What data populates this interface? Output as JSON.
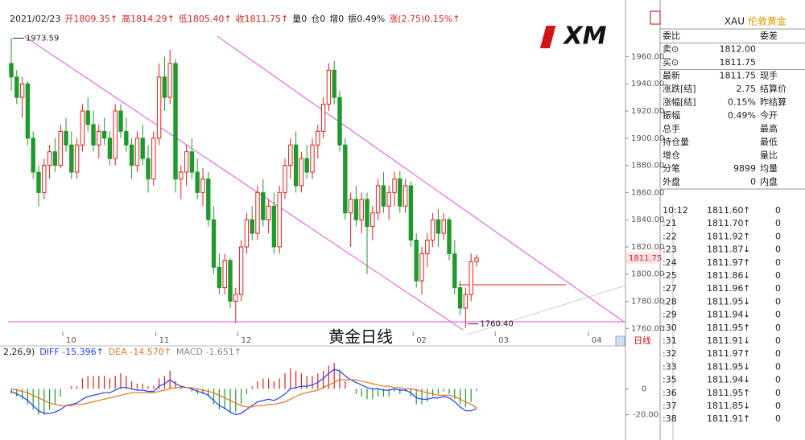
{
  "info_bar": {
    "items": [
      {
        "text": "2021/02/23",
        "color": "#222"
      },
      {
        "text": "开1809.35↑",
        "color": "#e0201c"
      },
      {
        "text": "高1814.29↑",
        "color": "#e0201c"
      },
      {
        "text": "低1805.40↑",
        "color": "#e0201c"
      },
      {
        "text": "收1811.75↑",
        "color": "#e0201c"
      },
      {
        "text": "量0",
        "color": "#222"
      },
      {
        "text": "仓0",
        "color": "#222"
      },
      {
        "text": "增0",
        "color": "#222"
      },
      {
        "text": "振0.49%",
        "color": "#222"
      },
      {
        "text": "涨(2.75)0.15%↑",
        "color": "#e0201c"
      }
    ]
  },
  "logo": "XM",
  "chart_data": [
    {
      "type": "candlestick",
      "title": "黄金日线",
      "period_label": "日线",
      "categories": [
        null,
        null,
        null,
        null,
        null,
        null,
        null,
        null,
        null,
        null,
        "10",
        null,
        null,
        null,
        null,
        null,
        null,
        null,
        null,
        null,
        null,
        null,
        null,
        null,
        null,
        null,
        null,
        "11",
        null,
        null,
        null,
        null,
        null,
        null,
        null,
        null,
        null,
        null,
        null,
        null,
        null,
        null,
        "12",
        null,
        null,
        null,
        null,
        null,
        null,
        null,
        null,
        null,
        null,
        null,
        null,
        null,
        null,
        null,
        null,
        null,
        null,
        null,
        null,
        null,
        null,
        null,
        null,
        null,
        null,
        null,
        null,
        null,
        null,
        null,
        "02",
        null,
        null,
        null,
        null,
        null,
        null,
        null,
        null,
        null,
        null,
        null,
        null,
        null,
        null,
        "03",
        null,
        null,
        null,
        null,
        null,
        null,
        null,
        null,
        null,
        null,
        null,
        null,
        null,
        null,
        null,
        null,
        "04",
        null,
        null,
        null,
        null,
        null
      ],
      "open": [
        1955,
        1945,
        1930,
        1940,
        1900,
        1875,
        1860,
        1880,
        1890,
        1880,
        1905,
        1895,
        1875,
        1895,
        1920,
        1910,
        1895,
        1905,
        1900,
        1885,
        1920,
        1905,
        1895,
        1880,
        1900,
        1885,
        1870,
        1900,
        1945,
        1930,
        1955,
        1870,
        1875,
        1890,
        1875,
        1860,
        1870,
        1840,
        1805,
        1790,
        1810,
        1780,
        1785,
        1820,
        1840,
        1830,
        1860,
        1840,
        1850,
        1820,
        1860,
        1880,
        1895,
        1865,
        1885,
        1875,
        1895,
        1905,
        1925,
        1950,
        1930,
        1895,
        1845,
        1855,
        1840,
        1855,
        1835,
        1845,
        1865,
        1850,
        1860,
        1870,
        1850,
        1865,
        1825,
        1795,
        1815,
        1825,
        1840,
        1830,
        1840,
        1815,
        1790,
        1775,
        1785,
        1809.35,
        null,
        null,
        null,
        null,
        null,
        null,
        null,
        null,
        null,
        null,
        null,
        null,
        null,
        null,
        null,
        null,
        null,
        null,
        null,
        null,
        null,
        null,
        null,
        null,
        null,
        null
      ],
      "high": [
        1973.59,
        1950,
        1945,
        1942,
        1905,
        1880,
        1885,
        1895,
        1900,
        1910,
        1915,
        1905,
        1900,
        1925,
        1930,
        1920,
        1910,
        1915,
        1905,
        1925,
        1925,
        1915,
        1900,
        1905,
        1910,
        1895,
        1905,
        1955,
        1960,
        1965,
        1958,
        1880,
        1895,
        1900,
        1885,
        1878,
        1875,
        1850,
        1815,
        1815,
        1812,
        1790,
        1825,
        1845,
        1850,
        1865,
        1870,
        1855,
        1860,
        1865,
        1885,
        1900,
        1905,
        1890,
        1895,
        1900,
        1910,
        1930,
        1955,
        1957,
        1935,
        1900,
        1860,
        1865,
        1860,
        1860,
        1850,
        1870,
        1875,
        1865,
        1875,
        1876,
        1870,
        1868,
        1830,
        1820,
        1830,
        1845,
        1848,
        1845,
        1842,
        1825,
        1795,
        1790,
        1815,
        1814.29,
        null,
        null,
        null,
        null,
        null,
        null,
        null,
        null,
        null,
        null,
        null,
        null,
        null,
        null,
        null,
        null,
        null,
        null,
        null,
        null,
        null,
        null,
        null,
        null,
        null,
        null
      ],
      "low": [
        1935,
        1925,
        1915,
        1895,
        1870,
        1850,
        1855,
        1870,
        1875,
        1878,
        1890,
        1870,
        1870,
        1890,
        1905,
        1890,
        1885,
        1895,
        1880,
        1880,
        1900,
        1890,
        1870,
        1875,
        1880,
        1860,
        1865,
        1895,
        1920,
        1925,
        1860,
        1855,
        1865,
        1870,
        1855,
        1850,
        1835,
        1800,
        1785,
        1785,
        1775,
        1764,
        1780,
        1815,
        1825,
        1825,
        1835,
        1830,
        1815,
        1815,
        1855,
        1870,
        1860,
        1860,
        1870,
        1870,
        1885,
        1900,
        1920,
        1925,
        1890,
        1840,
        1820,
        1835,
        1830,
        1800,
        1825,
        1840,
        1845,
        1840,
        1850,
        1845,
        1845,
        1820,
        1790,
        1785,
        1805,
        1820,
        1820,
        1825,
        1810,
        1785,
        1770,
        1760.4,
        1780,
        1805.4,
        null,
        null,
        null,
        null,
        null,
        null,
        null,
        null,
        null,
        null,
        null,
        null,
        null,
        null,
        null,
        null,
        null,
        null,
        null,
        null,
        null,
        null,
        null,
        null,
        null,
        null
      ],
      "close": [
        1945,
        1930,
        1940,
        1900,
        1875,
        1860,
        1880,
        1890,
        1880,
        1905,
        1895,
        1875,
        1895,
        1920,
        1910,
        1895,
        1905,
        1900,
        1885,
        1920,
        1905,
        1895,
        1880,
        1900,
        1885,
        1870,
        1900,
        1945,
        1930,
        1955,
        1870,
        1875,
        1890,
        1875,
        1860,
        1870,
        1840,
        1805,
        1790,
        1810,
        1780,
        1785,
        1820,
        1840,
        1830,
        1860,
        1840,
        1850,
        1820,
        1860,
        1880,
        1895,
        1865,
        1885,
        1875,
        1895,
        1905,
        1925,
        1950,
        1930,
        1895,
        1845,
        1855,
        1840,
        1855,
        1835,
        1845,
        1865,
        1850,
        1860,
        1870,
        1850,
        1865,
        1825,
        1795,
        1815,
        1825,
        1840,
        1830,
        1840,
        1815,
        1790,
        1775,
        1785,
        1809,
        1811.75,
        null,
        null,
        null,
        null,
        null,
        null,
        null,
        null,
        null,
        null,
        null,
        null,
        null,
        null,
        null,
        null,
        null,
        null,
        null,
        null,
        null,
        null,
        null,
        null,
        null,
        null
      ],
      "up_color": "#e0201c",
      "down_color": "#1e9a2c",
      "ylim": [
        1759,
        1978
      ],
      "yticks": [
        {
          "value": 1760,
          "label": "1760.00"
        },
        {
          "value": 1780,
          "label": "1780.00"
        },
        {
          "value": 1800,
          "label": "1800.00"
        },
        {
          "value": 1820,
          "label": "1820.00"
        },
        {
          "value": 1840,
          "label": "1840.00"
        },
        {
          "value": 1860,
          "label": "1860.00"
        },
        {
          "value": 1880,
          "label": "1880.00"
        },
        {
          "value": 1900,
          "label": "1900.00"
        },
        {
          "value": 1920,
          "label": "1920.00"
        },
        {
          "value": 1940,
          "label": "1940.00"
        },
        {
          "value": 1960,
          "label": "1960.00"
        }
      ],
      "last_price": {
        "value": 1811.75,
        "label": "1811.75"
      },
      "annotations": [
        {
          "value": 1973.59,
          "label": "1973.59"
        },
        {
          "value": 1760.4,
          "label": "1760.40"
        }
      ]
    },
    {
      "type": "macd",
      "params": "2,26,9)",
      "legend": [
        {
          "text": "DIFF -15.396↑",
          "color": "#1a3cff"
        },
        {
          "text": "DEA -14.570↑",
          "color": "#e8741c"
        },
        {
          "text": "MACD -1.651↑",
          "color": "#888"
        }
      ],
      "diff": [
        -2,
        -4,
        -6,
        -9,
        -13,
        -17,
        -19,
        -19,
        -18,
        -16,
        -13,
        -12,
        -11,
        -8,
        -6,
        -5,
        -4,
        -3,
        -3,
        -1,
        1,
        1,
        0,
        -1,
        -1,
        -2,
        -2,
        2,
        4,
        7,
        4,
        2,
        1,
        0,
        -2,
        -3,
        -5,
        -9,
        -13,
        -15,
        -18,
        -20,
        -19,
        -16,
        -13,
        -10,
        -9,
        -8,
        -9,
        -7,
        -4,
        0,
        1,
        2,
        2,
        3,
        5,
        8,
        12,
        15,
        14,
        10,
        7,
        5,
        3,
        1,
        0,
        0,
        -1,
        -1,
        0,
        -1,
        -1,
        -3,
        -7,
        -8,
        -8,
        -7,
        -7,
        -6,
        -7,
        -10,
        -14,
        -17,
        -17,
        -15.396
      ],
      "dea": [
        0,
        -1,
        -2,
        -3,
        -5,
        -7,
        -9,
        -11,
        -12,
        -13,
        -13,
        -13,
        -12,
        -12,
        -11,
        -10,
        -9,
        -8,
        -7,
        -6,
        -5,
        -4,
        -3,
        -3,
        -3,
        -3,
        -3,
        -2,
        -1,
        0,
        1,
        1,
        1,
        1,
        0,
        -1,
        -2,
        -3,
        -5,
        -7,
        -9,
        -11,
        -13,
        -14,
        -14,
        -13,
        -13,
        -12,
        -12,
        -11,
        -10,
        -8,
        -6,
        -4,
        -3,
        -2,
        -1,
        1,
        3,
        5,
        7,
        7,
        7,
        7,
        6,
        5,
        4,
        3,
        2,
        2,
        1,
        1,
        0,
        0,
        -1,
        -2,
        -3,
        -4,
        -5,
        -5,
        -5,
        -6,
        -8,
        -10,
        -12,
        -14.57
      ],
      "hist": [
        -4,
        -6,
        -8,
        -12,
        -16,
        -20,
        -20,
        -16,
        -12,
        -6,
        0,
        2,
        2,
        8,
        10,
        10,
        10,
        10,
        8,
        10,
        12,
        10,
        6,
        4,
        4,
        2,
        2,
        8,
        10,
        14,
        6,
        2,
        0,
        -2,
        -4,
        -4,
        -6,
        -12,
        -16,
        -16,
        -18,
        -18,
        -12,
        -4,
        2,
        6,
        8,
        8,
        6,
        8,
        12,
        16,
        14,
        12,
        10,
        10,
        12,
        14,
        18,
        20,
        14,
        6,
        0,
        -4,
        -6,
        -8,
        -8,
        -6,
        -6,
        -6,
        -2,
        -4,
        -2,
        -6,
        -12,
        -12,
        -10,
        -6,
        -4,
        -2,
        -4,
        -8,
        -12,
        -14,
        -10,
        -1.651
      ],
      "up_color": "#e0201c",
      "down_color": "#1e9a2c",
      "ylim": [
        -29,
        27
      ],
      "yticks": [
        0,
        {
          "value": -20,
          "label": "-20.00"
        }
      ]
    }
  ],
  "quote": {
    "symbol": "XAU",
    "name": "伦敦黄金",
    "rows": [
      {
        "label": "委比",
        "right": "委差"
      },
      {
        "label": "卖⊙",
        "value": "1812.00",
        "color": "#e0201c"
      },
      {
        "label": "买⊙",
        "value": "1811.75",
        "color": "#e0201c"
      },
      {
        "label": "最新",
        "value": "1811.75",
        "color": "#e0201c",
        "right": "现手"
      },
      {
        "label": "涨跌[结]",
        "value": "2.75",
        "color": "#e0201c",
        "right": "结算价"
      },
      {
        "label": "涨幅[结]",
        "value": "0.15%",
        "color": "#e0201c",
        "right": "昨结算"
      },
      {
        "label": "振幅",
        "value": "0.49%",
        "color": "#222",
        "right": "今开"
      },
      {
        "label": "总手",
        "right": "最高"
      },
      {
        "label": "持仓量",
        "right": "最低"
      },
      {
        "label": "增仓",
        "right": "量比"
      },
      {
        "label": "分笔",
        "value": "9899",
        "color": "#222",
        "right": "均量"
      },
      {
        "label": "外盘",
        "value": "0",
        "color": "#e0201c",
        "right": "内盘"
      }
    ],
    "ticks": [
      {
        "time": "10:12",
        "price": "1811.60",
        "dir": "↑",
        "vol": "0"
      },
      {
        "time": ":21",
        "price": "1811.70",
        "dir": "↑",
        "vol": "0"
      },
      {
        "time": ":22",
        "price": "1811.92",
        "dir": "↑",
        "vol": "0"
      },
      {
        "time": ":23",
        "price": "1811.87",
        "dir": "↓",
        "vol": "0"
      },
      {
        "time": ":24",
        "price": "1811.97",
        "dir": "↑",
        "vol": "0"
      },
      {
        "time": ":25",
        "price": "1811.86",
        "dir": "↓",
        "vol": "0"
      },
      {
        "time": ":27",
        "price": "1811.96",
        "dir": "↑",
        "vol": "0"
      },
      {
        "time": ":28",
        "price": "1811.95",
        "dir": "↓",
        "vol": "0"
      },
      {
        "time": ":29",
        "price": "1811.94",
        "dir": "↓",
        "vol": "0"
      },
      {
        "time": ":30",
        "price": "1811.95",
        "dir": "↑",
        "vol": "0"
      },
      {
        "time": ":31",
        "price": "1811.91",
        "dir": "↓",
        "vol": "0"
      },
      {
        "time": ":32",
        "price": "1811.97",
        "dir": "↑",
        "vol": "0"
      },
      {
        "time": ":33",
        "price": "1811.95",
        "dir": "↓",
        "vol": "0"
      },
      {
        "time": ":35",
        "price": "1811.94",
        "dir": "↓",
        "vol": "0"
      },
      {
        "time": ":36",
        "price": "1811.95",
        "dir": "↑",
        "vol": "0"
      },
      {
        "time": ":37",
        "price": "1811.85",
        "dir": "↓",
        "vol": "0"
      },
      {
        "time": ":38",
        "price": "1811.91",
        "dir": "↑",
        "vol": "0"
      }
    ]
  }
}
